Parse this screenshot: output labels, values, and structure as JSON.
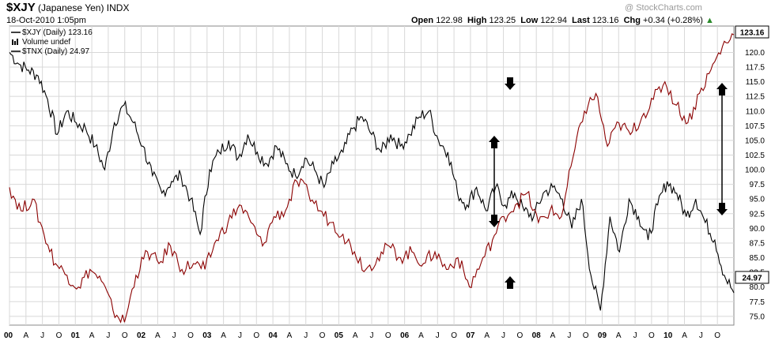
{
  "header": {
    "symbol": "$XJY",
    "name": "(Japanese Yen)",
    "exchange": "INDX",
    "date": "18-Oct-2010 1:05pm",
    "credit": "@ StockCharts.com",
    "open_label": "Open",
    "open": "122.98",
    "high_label": "High",
    "high": "123.25",
    "low_label": "Low",
    "low": "122.94",
    "last_label": "Last",
    "last": "123.16",
    "chg_label": "Chg",
    "chg": "+0.34 (+0.28%)"
  },
  "legend": [
    {
      "text": "$XJY (Daily) 123.16",
      "color": "#000000"
    },
    {
      "text": "Volume undef",
      "color": "#000000"
    },
    {
      "text": "$TNX (Daily) 24.97",
      "color": "#000000"
    }
  ],
  "chart_data": {
    "type": "line",
    "title": "$XJY (Japanese Yen)",
    "yticks": [
      "75.0",
      "77.5",
      "80.0",
      "82.5",
      "85.0",
      "87.5",
      "90.0",
      "92.5",
      "95.0",
      "97.5",
      "100.0",
      "102.5",
      "105.0",
      "107.5",
      "110.0",
      "112.5",
      "115.0",
      "117.5",
      "120.0"
    ],
    "ylim": [
      73.5,
      124.5
    ],
    "x_labels": [
      "00",
      "A",
      "J",
      "O",
      "01",
      "A",
      "J",
      "O",
      "02",
      "A",
      "J",
      "O",
      "03",
      "A",
      "J",
      "O",
      "04",
      "A",
      "J",
      "O",
      "05",
      "A",
      "J",
      "O",
      "06",
      "A",
      "J",
      "O",
      "07",
      "A",
      "J",
      "O",
      "08",
      "A",
      "J",
      "O",
      "09",
      "A",
      "J",
      "O",
      "10",
      "A",
      "J",
      "O"
    ],
    "year_labels": [
      "00",
      "01",
      "02",
      "03",
      "04",
      "05",
      "06",
      "07",
      "08",
      "09",
      "10"
    ],
    "grid": true,
    "last_value_labels": [
      "123.16",
      "24.97"
    ],
    "series": [
      {
        "name": "$XJY (Daily)",
        "color": "#000000",
        "values": [
          120,
          118,
          117,
          116,
          112,
          106,
          110,
          108,
          107,
          104,
          100,
          108,
          111,
          108,
          104,
          99,
          96,
          98,
          99,
          95,
          89,
          100,
          103,
          105,
          102,
          106,
          103,
          101,
          104,
          101,
          99,
          102,
          100,
          97,
          101,
          103,
          107,
          109,
          106,
          103,
          106,
          104,
          106,
          109,
          110,
          105,
          103,
          96,
          94,
          97,
          93,
          97,
          94,
          96,
          93,
          92,
          96,
          97,
          95,
          90,
          95,
          82,
          76,
          92,
          86,
          95,
          92,
          88,
          94,
          98,
          96,
          92,
          95,
          91,
          88,
          82,
          79
        ]
      },
      {
        "name": "$TNX (Daily)",
        "color": "#8b0000",
        "values": [
          97,
          93,
          95,
          89,
          84,
          82,
          80,
          83,
          81,
          76,
          74,
          82,
          86,
          84,
          87,
          83,
          84,
          83,
          88,
          91,
          94,
          91,
          87,
          92,
          93,
          98,
          96,
          93,
          91,
          89,
          86,
          83,
          85,
          87,
          85,
          86,
          84,
          86,
          83,
          85,
          80,
          84,
          88,
          92,
          94,
          96,
          91,
          93,
          92,
          102,
          110,
          113,
          104,
          108,
          106,
          109,
          112,
          115,
          111,
          108,
          113,
          117,
          121,
          123
        ]
      }
    ],
    "annotations": [
      {
        "type": "double-arrow",
        "label": ""
      },
      {
        "type": "double-arrow",
        "label": ""
      }
    ]
  }
}
